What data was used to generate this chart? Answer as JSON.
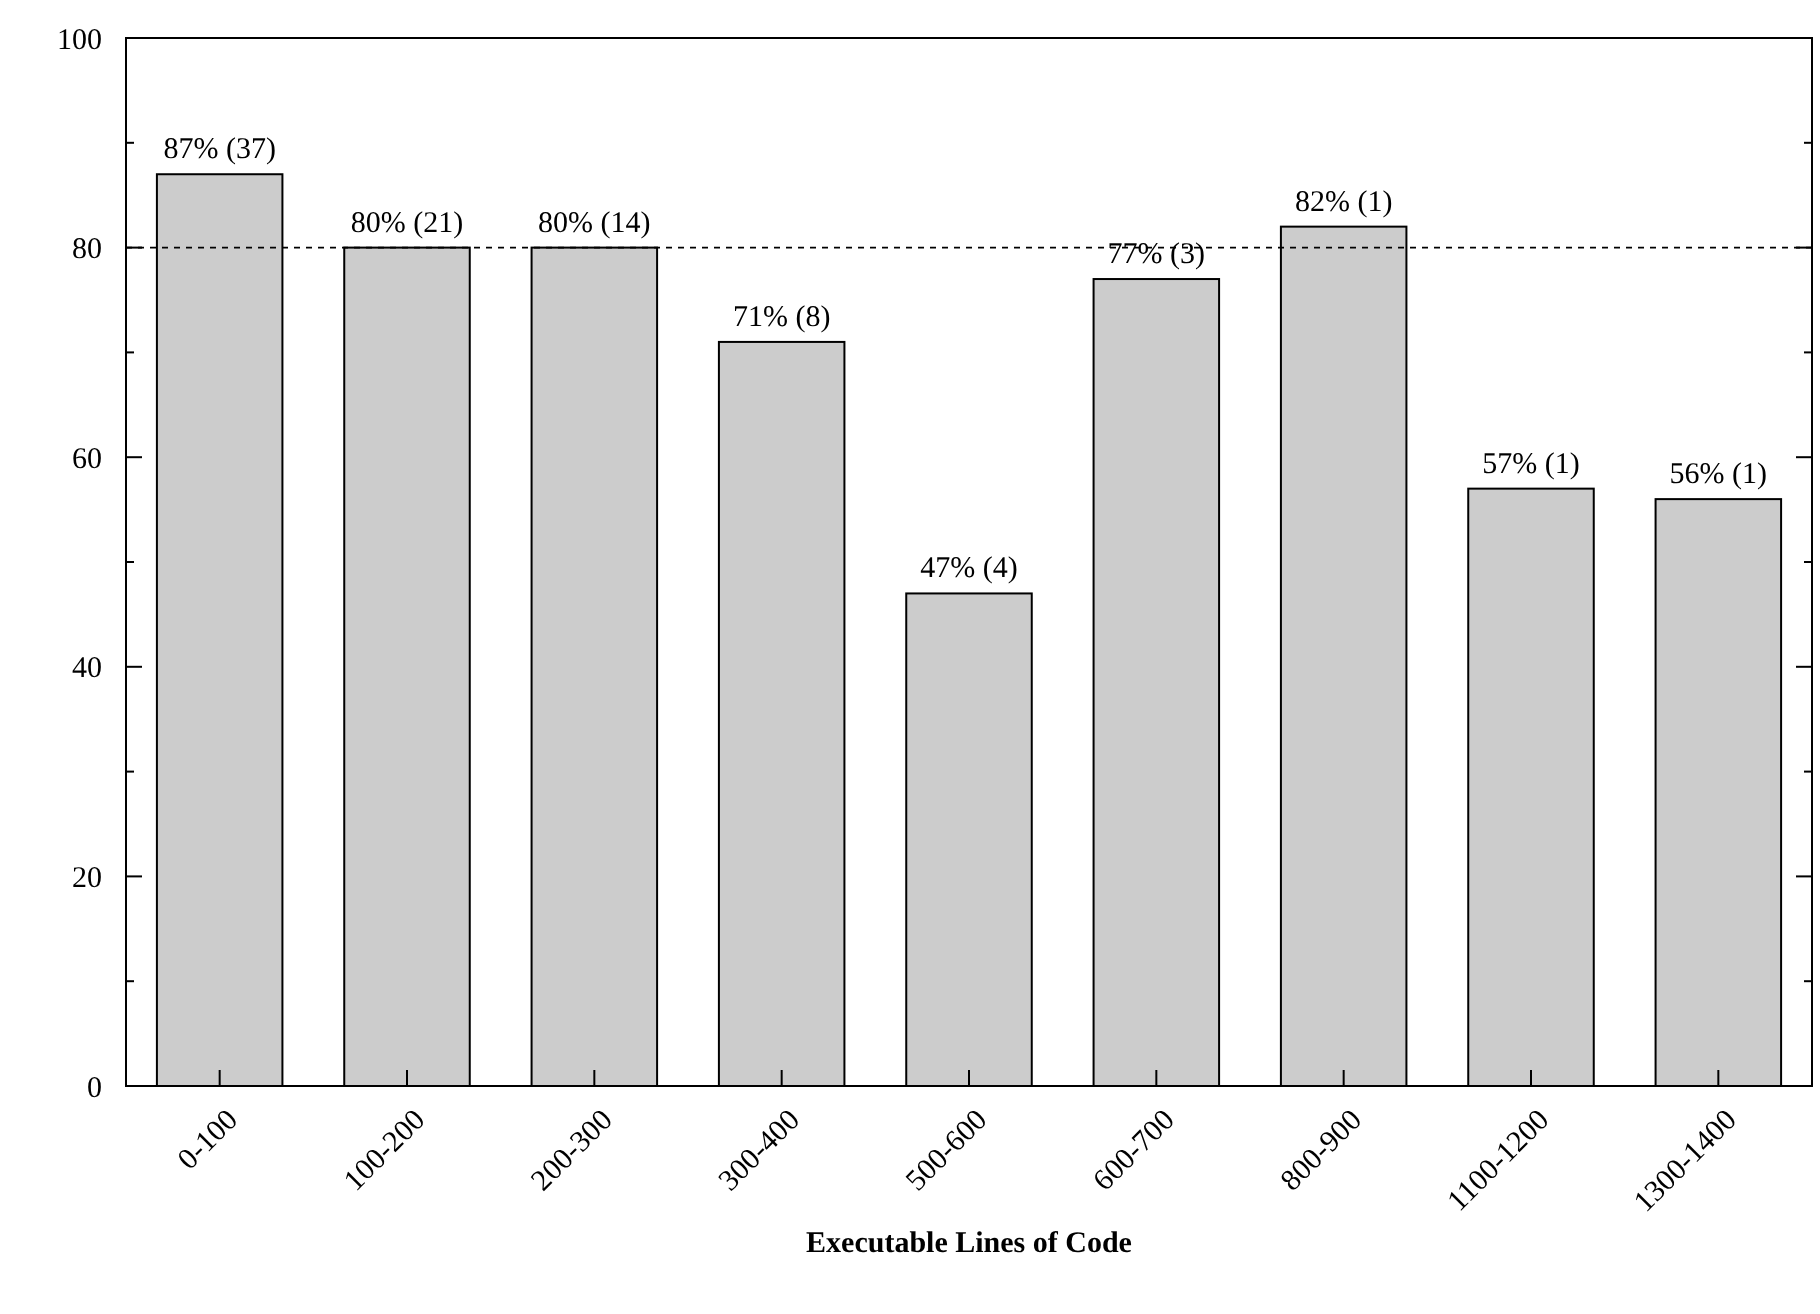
{
  "chart_data": {
    "type": "bar",
    "xlabel": "Executable Lines of Code",
    "categories": [
      "0-100",
      "100-200",
      "200-300",
      "300-400",
      "500-600",
      "600-700",
      "800-900",
      "1100-1200",
      "1300-1400"
    ],
    "values": [
      87,
      80,
      80,
      71,
      47,
      77,
      82,
      57,
      56
    ],
    "value_labels": [
      "87% (37)",
      "80% (21)",
      "80% (14)",
      "71% (8)",
      "47% (4)",
      "77% (3)",
      "82% (1)",
      "57% (1)",
      "56% (1)"
    ],
    "color": "#cccccc",
    "ylim": [
      0,
      100
    ],
    "yticks": [
      0,
      {
        "value": 10,
        "label": null
      },
      20,
      {
        "value": 30,
        "label": null
      },
      40,
      {
        "value": 50,
        "label": null
      },
      60,
      {
        "value": 70,
        "label": null
      },
      80,
      {
        "value": 90,
        "label": null
      },
      100
    ],
    "ref_lines": [
      {
        "axis": "y",
        "value": 80,
        "line_style": "dashed"
      }
    ]
  }
}
